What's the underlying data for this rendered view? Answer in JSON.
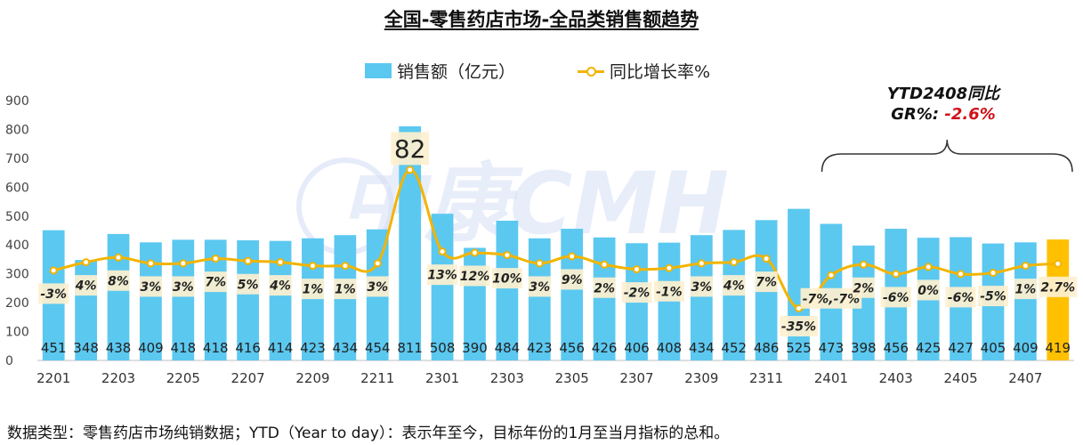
{
  "title": "全国-零售药店市场-全品类销售额趋势",
  "legend": {
    "bar": "销售额（亿元）",
    "line": "同比增长率%"
  },
  "watermark": "中康CMH",
  "ytd_note": {
    "line1": "YTD2408同比",
    "line2_label": "GR%: ",
    "line2_value": "-2.6%"
  },
  "footnote": "数据类型：零售药店市场纯销数据；YTD（Year to day）：表示年至今，目标年份的1月至当月指标的总和。",
  "colors": {
    "bar": "#5BC8F0",
    "highlight_bar": "#FFC000",
    "line": "#F2B400",
    "label_box": "#FDF0CF",
    "gr_red": "#D0121B"
  },
  "chart_data": {
    "type": "bar",
    "categories": [
      "2201",
      "2202",
      "2203",
      "2204",
      "2205",
      "2206",
      "2207",
      "2208",
      "2209",
      "2210",
      "2211",
      "2212",
      "2301",
      "2302",
      "2303",
      "2304",
      "2305",
      "2306",
      "2307",
      "2308",
      "2309",
      "2310",
      "2311",
      "2312",
      "2401",
      "2402",
      "2403",
      "2404",
      "2405",
      "2406",
      "2407",
      "2408"
    ],
    "x_tick_labels": [
      "2201",
      "2203",
      "2205",
      "2207",
      "2209",
      "2211",
      "2301",
      "2303",
      "2305",
      "2307",
      "2309",
      "2311",
      "2401",
      "2403",
      "2405",
      "2407"
    ],
    "series": [
      {
        "name": "销售额（亿元）",
        "type": "bar",
        "values": [
          451,
          348,
          438,
          409,
          418,
          418,
          416,
          414,
          423,
          434,
          454,
          811,
          508,
          390,
          484,
          423,
          456,
          426,
          406,
          408,
          434,
          452,
          486,
          525,
          473,
          398,
          456,
          425,
          427,
          405,
          409,
          419
        ]
      },
      {
        "name": "同比增长率%",
        "type": "line",
        "values": [
          -3,
          4,
          8,
          3,
          3,
          7,
          5,
          4,
          1,
          1,
          3,
          82,
          13,
          12,
          10,
          3,
          9,
          2,
          -2,
          -1,
          3,
          4,
          7,
          -35,
          -7,
          2,
          -6,
          0,
          -6,
          -5,
          1,
          2.7
        ]
      }
    ],
    "growth_labels": [
      "-3%",
      "4%",
      "8%",
      "3%",
      "3%",
      "7%",
      "5%",
      "4%",
      "1%",
      "1%",
      "3%",
      "82",
      "13%",
      "12%",
      "10%",
      "3%",
      "9%",
      "2%",
      "-2%",
      "-1%",
      "3%",
      "4%",
      "7%",
      "-35%",
      "-7%,-7%",
      "2%",
      "-6%",
      "0%",
      "-6%",
      "-5%",
      "1%",
      "2.7%"
    ],
    "y_axis": {
      "range": [
        0,
        900
      ],
      "ticks": [
        "0",
        "100",
        "200",
        "300",
        "400",
        "500",
        "600",
        "700",
        "800",
        "900"
      ]
    },
    "grid": false,
    "legend_position": "top"
  }
}
